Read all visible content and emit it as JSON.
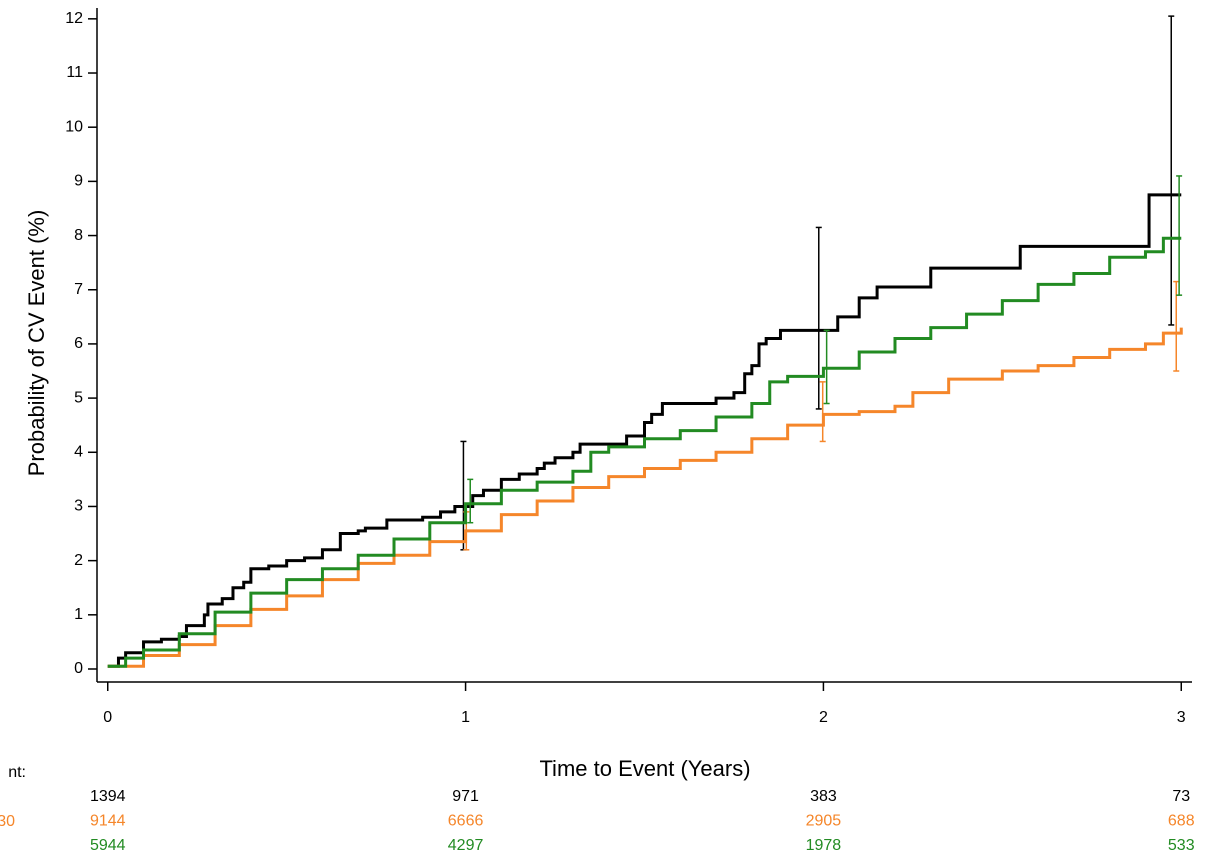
{
  "chart_data": {
    "type": "step",
    "xlabel": "Time to Event (Years)",
    "ylabel": "Probability of CV Event (%)",
    "xlim": [
      -0.03,
      3.03
    ],
    "xticks": [
      0,
      1,
      2,
      3
    ],
    "ylim": [
      -0.24,
      12.2
    ],
    "yticks": [
      0,
      1,
      2,
      3,
      4,
      5,
      6,
      7,
      8,
      9,
      10,
      11,
      12
    ],
    "series": [
      {
        "color": "#000000",
        "x": [
          0,
          0.03,
          0.05,
          0.1,
          0.15,
          0.2,
          0.22,
          0.27,
          0.28,
          0.32,
          0.35,
          0.38,
          0.4,
          0.45,
          0.5,
          0.55,
          0.6,
          0.65,
          0.7,
          0.72,
          0.78,
          0.88,
          0.93,
          0.97,
          1.02,
          1.05,
          1.1,
          1.15,
          1.2,
          1.22,
          1.25,
          1.3,
          1.32,
          1.45,
          1.5,
          1.52,
          1.55,
          1.7,
          1.75,
          1.78,
          1.8,
          1.82,
          1.84,
          1.88,
          2.04,
          2.1,
          2.15,
          2.3,
          2.55,
          2.91,
          3.0
        ],
        "values": [
          0.05,
          0.2,
          0.3,
          0.5,
          0.55,
          0.6,
          0.8,
          1.0,
          1.2,
          1.3,
          1.5,
          1.6,
          1.85,
          1.9,
          2.0,
          2.05,
          2.2,
          2.5,
          2.55,
          2.6,
          2.75,
          2.8,
          2.9,
          3.0,
          3.2,
          3.3,
          3.5,
          3.6,
          3.7,
          3.8,
          3.9,
          4.0,
          4.15,
          4.3,
          4.55,
          4.7,
          4.9,
          5.0,
          5.1,
          5.45,
          5.6,
          6.0,
          6.1,
          6.25,
          6.5,
          6.85,
          7.05,
          7.4,
          7.8,
          8.75,
          8.75
        ],
        "ci": {
          "x": [
            0.994,
            1.987,
            2.972
          ],
          "low": [
            2.2,
            4.8,
            6.35
          ],
          "high": [
            4.2,
            8.15,
            12.05
          ]
        },
        "at_risk": [
          1394,
          971,
          383,
          73
        ]
      },
      {
        "color": "#f5862a",
        "x": [
          0,
          0.1,
          0.2,
          0.3,
          0.4,
          0.5,
          0.6,
          0.7,
          0.8,
          0.9,
          1.0,
          1.1,
          1.2,
          1.3,
          1.4,
          1.5,
          1.6,
          1.7,
          1.8,
          1.9,
          2.0,
          2.1,
          2.2,
          2.25,
          2.35,
          2.5,
          2.6,
          2.7,
          2.8,
          2.9,
          2.95,
          3.0
        ],
        "values": [
          0.05,
          0.25,
          0.45,
          0.8,
          1.1,
          1.35,
          1.65,
          1.95,
          2.1,
          2.35,
          2.55,
          2.85,
          3.1,
          3.35,
          3.55,
          3.7,
          3.85,
          4.0,
          4.25,
          4.5,
          4.7,
          4.75,
          4.85,
          5.1,
          5.35,
          5.5,
          5.6,
          5.75,
          5.9,
          6.0,
          6.2,
          6.3
        ],
        "ci": {
          "x": [
            1.002,
            1.998,
            2.986
          ],
          "low": [
            2.2,
            4.2,
            5.5
          ],
          "high": [
            2.9,
            5.3,
            7.15
          ]
        },
        "at_risk": [
          9144,
          6666,
          2905,
          688
        ]
      },
      {
        "color": "#228b22",
        "x": [
          0,
          0.05,
          0.1,
          0.2,
          0.3,
          0.4,
          0.5,
          0.6,
          0.7,
          0.8,
          0.9,
          1.0,
          1.1,
          1.2,
          1.3,
          1.35,
          1.4,
          1.5,
          1.6,
          1.7,
          1.8,
          1.85,
          1.9,
          2.0,
          2.1,
          2.2,
          2.3,
          2.4,
          2.5,
          2.6,
          2.7,
          2.8,
          2.9,
          2.95,
          3.0
        ],
        "values": [
          0.05,
          0.2,
          0.35,
          0.65,
          1.05,
          1.4,
          1.65,
          1.85,
          2.1,
          2.4,
          2.7,
          3.05,
          3.3,
          3.45,
          3.65,
          4.0,
          4.1,
          4.25,
          4.4,
          4.65,
          4.9,
          5.3,
          5.4,
          5.55,
          5.85,
          6.1,
          6.3,
          6.55,
          6.8,
          7.1,
          7.3,
          7.6,
          7.7,
          7.95,
          7.95
        ],
        "ci": {
          "x": [
            1.013,
            2.009,
            2.994
          ],
          "low": [
            2.7,
            4.9,
            6.9
          ],
          "high": [
            3.5,
            6.25,
            9.1
          ]
        },
        "at_risk": [
          5944,
          4297,
          1978,
          533
        ]
      }
    ],
    "risk_table": {
      "times": [
        0,
        1,
        2,
        3
      ],
      "row_labels": [
        {
          "text": "nt:",
          "color": "#000000"
        },
        {
          "text": "30",
          "color": "#f5862a"
        }
      ]
    }
  }
}
